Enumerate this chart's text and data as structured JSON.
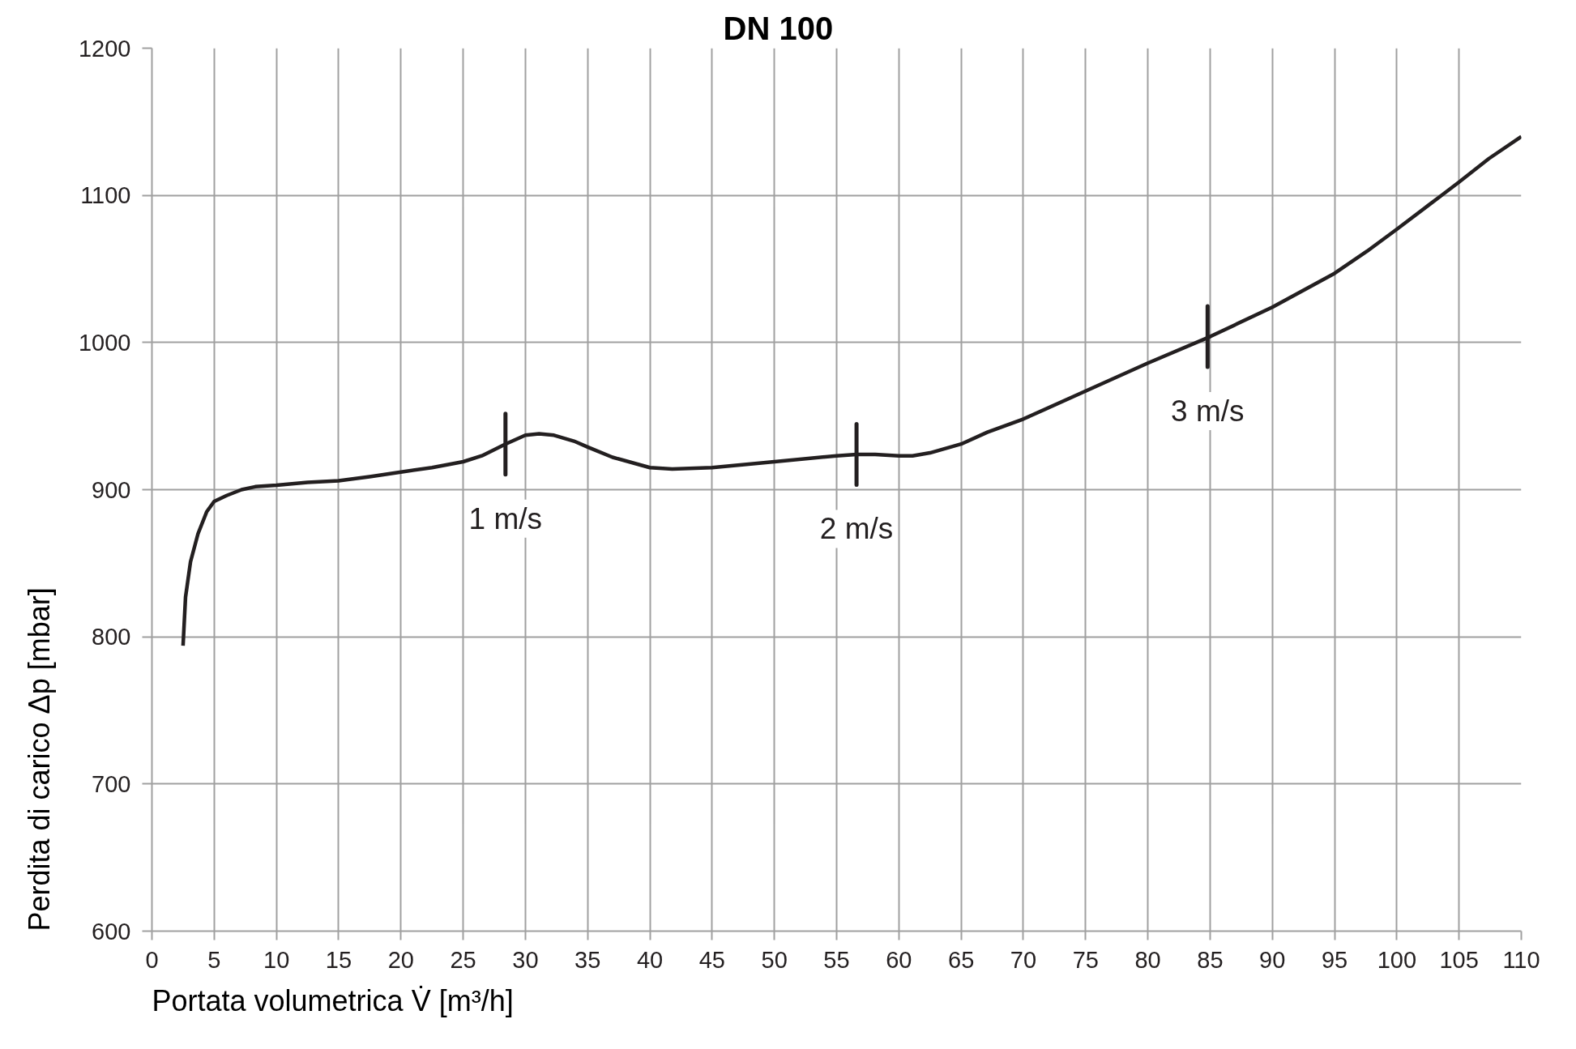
{
  "chart_data": {
    "type": "line",
    "title": "DN 100",
    "xlabel": "Portata volumetrica V̇ [m³/h]",
    "ylabel": "Perdita di carico Δp [mbar]",
    "xlim": [
      0,
      110
    ],
    "ylim": [
      600,
      1200
    ],
    "xticks": [
      0,
      5,
      10,
      15,
      20,
      25,
      30,
      35,
      40,
      45,
      50,
      55,
      60,
      65,
      70,
      75,
      80,
      85,
      90,
      95,
      100,
      105,
      110
    ],
    "yticks": [
      600,
      700,
      800,
      900,
      1000,
      1100,
      1200
    ],
    "grid": true,
    "line_style": "solid",
    "series": [
      {
        "color": "#231f20",
        "x": [
          2.5,
          2.7,
          3.1,
          3.7,
          4.4,
          5,
          6,
          7.2,
          8.3,
          10,
          12.5,
          15,
          17.6,
          20,
          22.5,
          25,
          26.5,
          28.4,
          30,
          31.1,
          32.3,
          33.9,
          35,
          37,
          40,
          41.8,
          45,
          50,
          55,
          56.6,
          58.1,
          60,
          61.1,
          62.5,
          65,
          67.1,
          70,
          75,
          80,
          85,
          90,
          95,
          97.6,
          100,
          102.5,
          105,
          107.4,
          110
        ],
        "values": [
          794,
          827,
          851,
          870,
          885,
          892,
          896,
          900,
          902,
          903,
          905,
          906,
          909,
          912,
          915,
          919,
          923,
          931,
          937,
          938,
          937,
          933,
          929,
          922,
          915,
          914,
          915,
          919,
          923,
          924,
          924,
          923,
          923,
          925,
          931,
          939,
          948,
          967,
          986,
          1004,
          1024,
          1047,
          1062,
          1077,
          1093,
          1109,
          1125,
          1140
        ]
      }
    ],
    "annotations": [
      {
        "text": "1 m/s",
        "x": 28.4,
        "y": 931
      },
      {
        "text": "2 m/s",
        "x": 56.6,
        "y": 924
      },
      {
        "text": "3 m/s",
        "x": 84.8,
        "y": 1004
      }
    ]
  }
}
